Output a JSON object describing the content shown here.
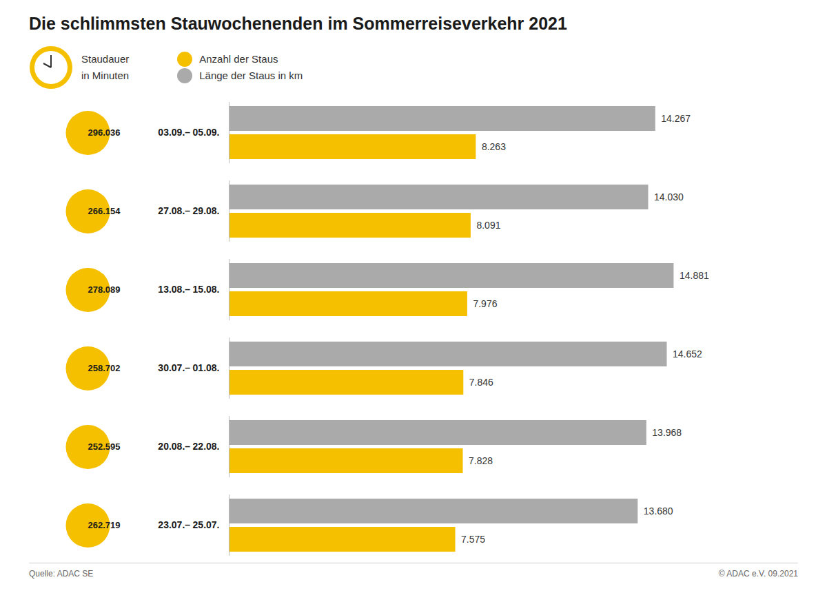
{
  "chart_data": {
    "type": "bar",
    "orientation": "horizontal",
    "title": "Die schlimmsten Stauwochenenden im Sommerreiseverkehr 2021",
    "categories": [
      "03.09.– 05.09.",
      "27.08.– 29.08.",
      "13.08.– 15.08.",
      "30.07.– 01.08.",
      "20.08.– 22.08.",
      "23.07.– 25.07."
    ],
    "series": [
      {
        "name": "Länge der Staus in km",
        "color": "#AAAAAA",
        "values": [
          14267,
          14030,
          14881,
          14652,
          13968,
          13680
        ],
        "value_labels": [
          "14.267",
          "14.030",
          "14.881",
          "14.652",
          "13.968",
          "13.680"
        ]
      },
      {
        "name": "Anzahl der Staus",
        "color": "#F5C000",
        "values": [
          8263,
          8091,
          7976,
          7846,
          7828,
          7575
        ],
        "value_labels": [
          "8.263",
          "8.091",
          "7.976",
          "7.846",
          "7.828",
          "7.575"
        ]
      }
    ],
    "durations": {
      "label": [
        "Staudauer",
        "in Minuten"
      ],
      "color": "#F5C000",
      "values": [
        296036,
        266154,
        278089,
        258702,
        252595,
        262719
      ],
      "value_labels": [
        "296.036",
        "266.154",
        "278.089",
        "258.702",
        "252.595",
        "262.719"
      ]
    },
    "xlim": [
      0,
      17200
    ],
    "data_labels": true,
    "tick_labels": "y",
    "grid": false,
    "annotations": [
      "Quelle: ADAC SE",
      "© ADAC e.V. 09.2021"
    ]
  }
}
